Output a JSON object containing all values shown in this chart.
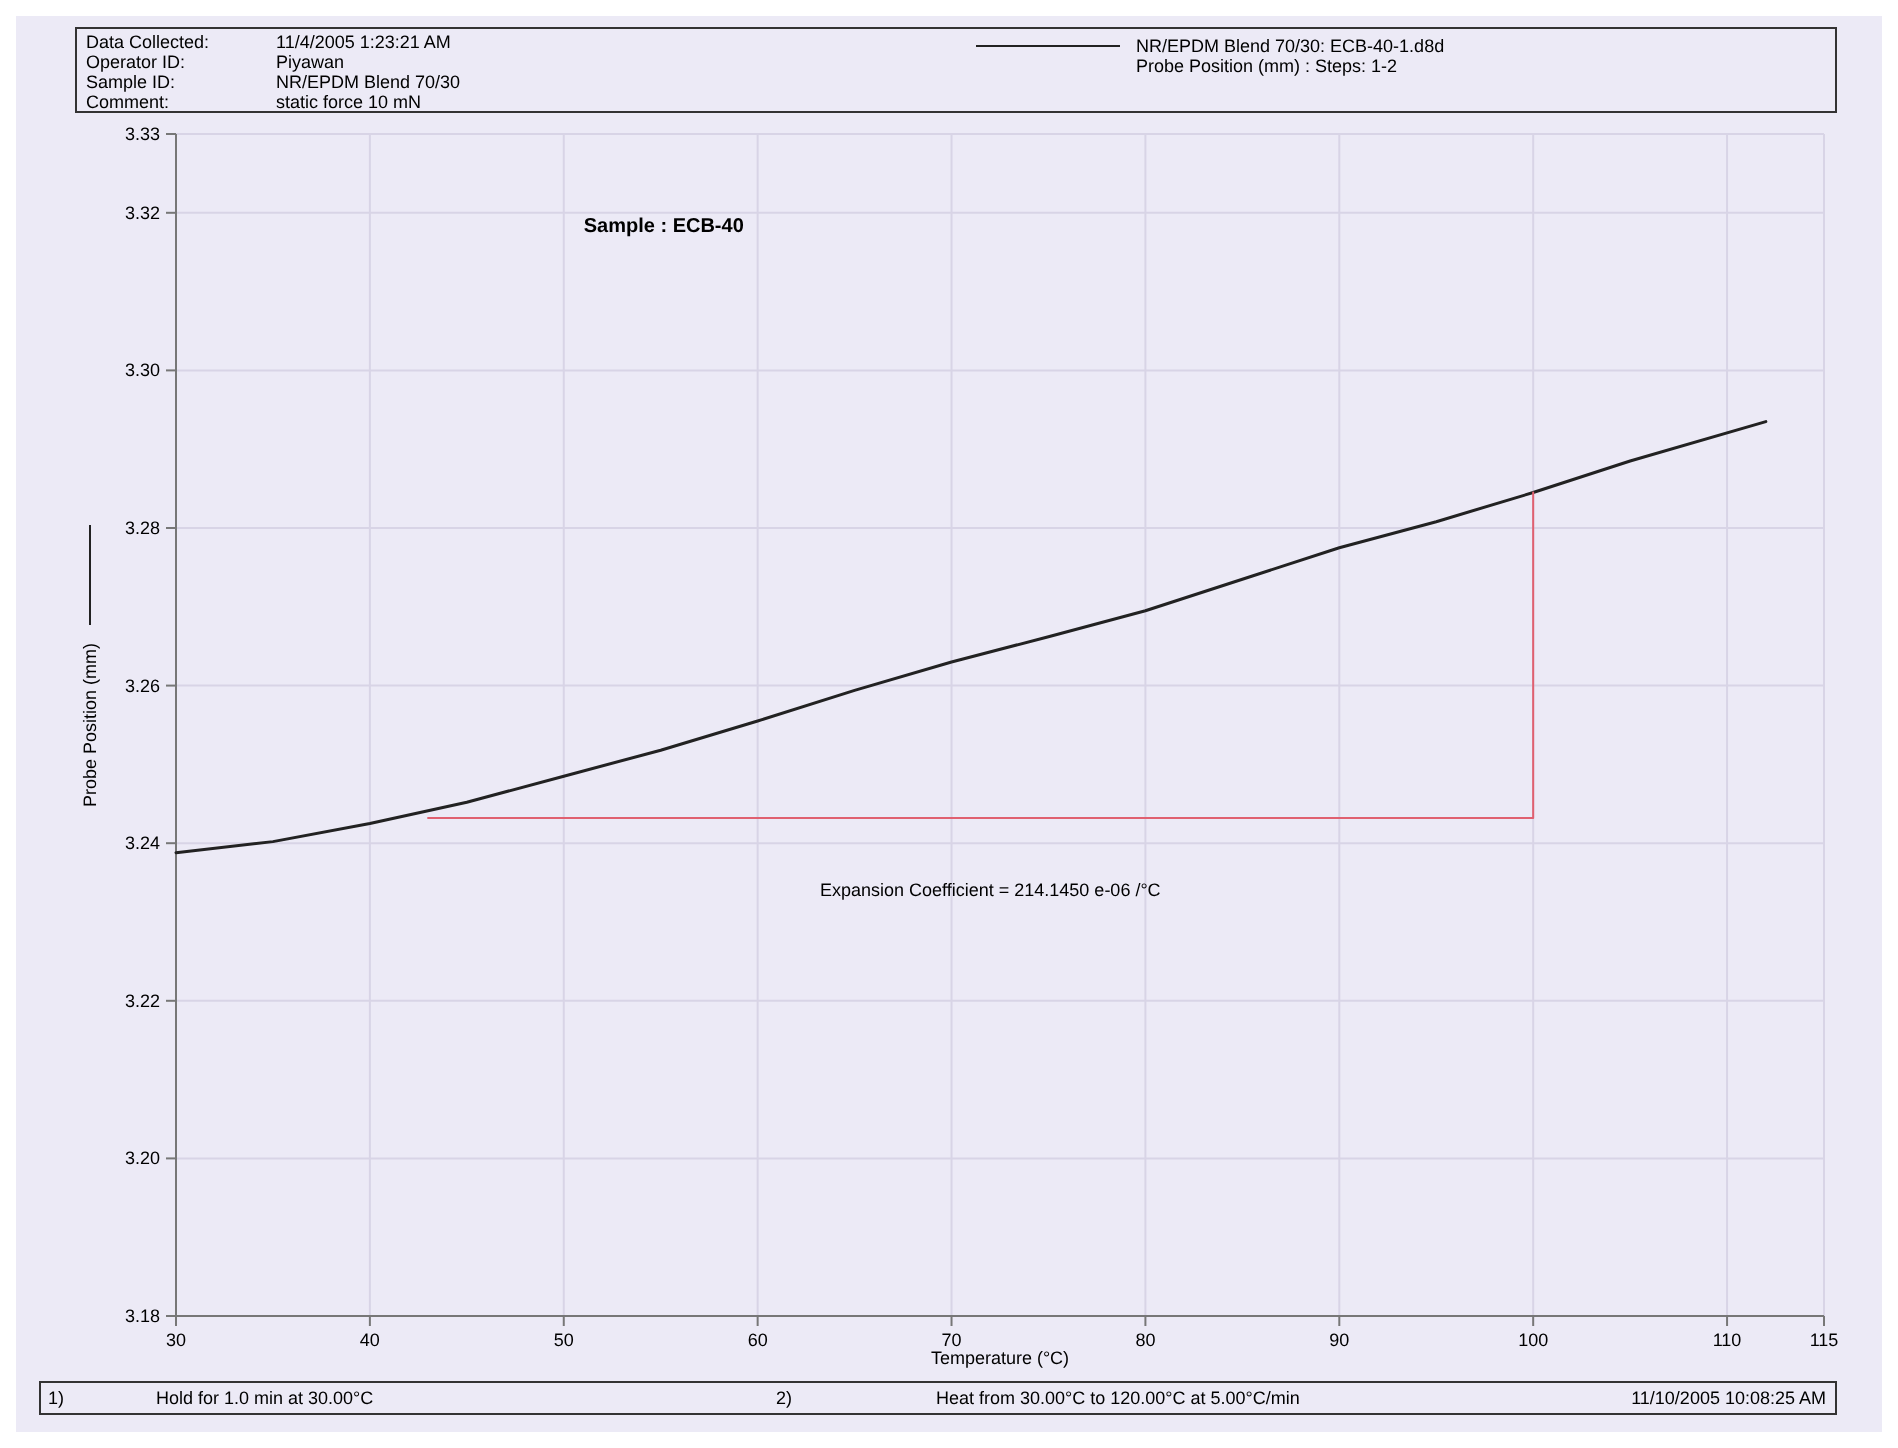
{
  "chart_data": {
    "type": "line",
    "title": "Sample : ECB-40",
    "xlabel": "Temperature (°C)",
    "ylabel": "Probe Position (mm)",
    "annotations": [
      "Data Collected:",
      "11/4/2005 1:23:21 AM",
      "Operator ID:",
      "Piyawan",
      "Sample ID:",
      "NR/EPDM Blend 70/30",
      "Comment:",
      "static force 10 mN",
      "Probe Position (mm) : Steps: 1-2",
      "Expansion Coefficient = 214.1450 e-06 /°C",
      "1)",
      "Hold for 1.0 min at 30.00°C",
      "2)",
      "Heat from 30.00°C to 120.00°C at 5.00°C/min",
      "11/10/2005 10:08:25 AM"
    ],
    "series": [
      {
        "name": "NR/EPDM Blend 70/30: ECB-40-1.d8d",
        "color": "#222222",
        "x": [
          30,
          35,
          40,
          45,
          50,
          55,
          60,
          65,
          70,
          75,
          80,
          85,
          90,
          95,
          100,
          105,
          112
        ],
        "values": [
          3.2388,
          3.2402,
          3.2425,
          3.2452,
          3.2485,
          3.2518,
          3.2555,
          3.2594,
          3.263,
          3.2662,
          3.2695,
          3.2735,
          3.2775,
          3.2808,
          3.2845,
          3.2885,
          3.2935
        ]
      },
      {
        "color": "#e06070",
        "x": [
          43,
          100,
          100
        ],
        "values": [
          3.2432,
          3.2432,
          3.2845
        ]
      }
    ],
    "xlim": [
      30,
      115
    ],
    "xticks": [
      30,
      40,
      50,
      60,
      70,
      80,
      90,
      100,
      110,
      115
    ],
    "ylim": [
      3.18,
      3.33
    ],
    "yticks": [
      3.18,
      {
        "value": 3.2,
        "label": "3.20"
      },
      3.22,
      3.24,
      3.26,
      3.28,
      {
        "value": 3.3,
        "label": "3.30"
      },
      3.32,
      3.33
    ],
    "grid": true,
    "legend": "top right"
  }
}
